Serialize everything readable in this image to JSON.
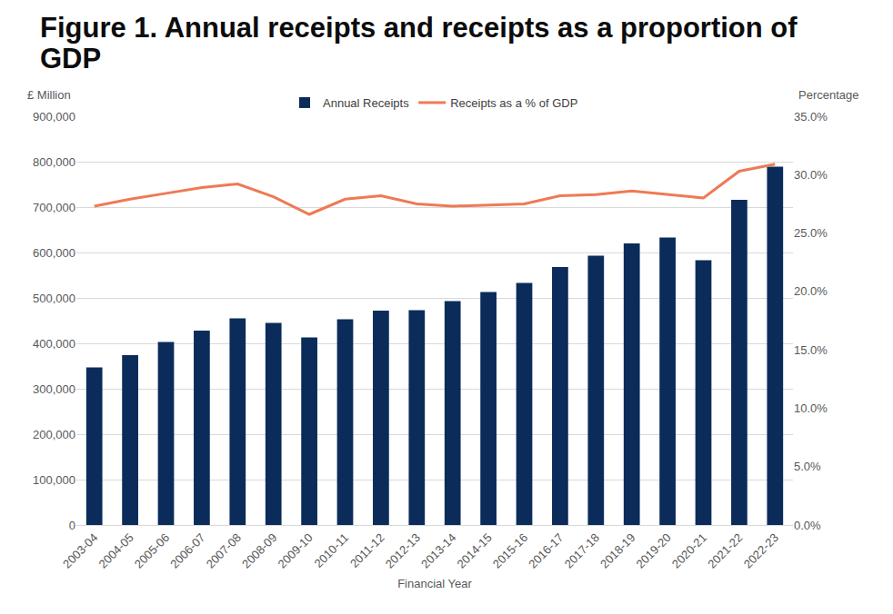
{
  "chart_data": {
    "type": "bar",
    "title": "Figure 1. Annual receipts and receipts as a proportion of GDP",
    "x_label": "Financial Year",
    "y_label": "£ Million",
    "y2_label": "Percentage",
    "categories": [
      "2003-04",
      "2004-05",
      "2005-06",
      "2006-07",
      "2007-08",
      "2008-09",
      "2009-10",
      "2010-11",
      "2011-12",
      "2012-13",
      "2013-14",
      "2014-15",
      "2015-16",
      "2016-17",
      "2017-18",
      "2018-19",
      "2019-20",
      "2020-21",
      "2021-22",
      "2022-23"
    ],
    "series": [
      {
        "name": "Annual Receipts",
        "type": "bar",
        "color": "#0b2c5a",
        "values": [
          347000,
          374000,
          403000,
          428000,
          455000,
          445000,
          413000,
          453000,
          472000,
          473000,
          493000,
          513000,
          533000,
          568000,
          593000,
          620000,
          633000,
          583000,
          716000,
          789000
        ]
      },
      {
        "name": "Receipts as a % of GDP",
        "type": "line",
        "color": "#ee7a55",
        "axis": "y2",
        "values": [
          27.3,
          27.9,
          28.4,
          28.9,
          29.2,
          28.1,
          26.6,
          27.9,
          28.2,
          27.5,
          27.3,
          27.4,
          27.5,
          28.2,
          28.3,
          28.6,
          28.3,
          28.0,
          30.3,
          30.9
        ]
      }
    ],
    "ylim": [
      0,
      900000
    ],
    "yticks": [
      0,
      {
        "value": 100000,
        "label": "100,000"
      },
      {
        "value": 200000,
        "label": "200,000"
      },
      {
        "value": 300000,
        "label": "300,000"
      },
      {
        "value": 400000,
        "label": "400,000"
      },
      {
        "value": 500000,
        "label": "500,000"
      },
      {
        "value": 600000,
        "label": "600,000"
      },
      {
        "value": 700000,
        "label": "700,000"
      },
      {
        "value": 800000,
        "label": "800,000"
      },
      {
        "value": 900000,
        "label": "900,000"
      }
    ],
    "y2lim": [
      0,
      35
    ],
    "y2ticks": [
      {
        "value": 0,
        "label": "0.0%"
      },
      {
        "value": 5,
        "label": "5.0%"
      },
      {
        "value": 10,
        "label": "10.0%"
      },
      {
        "value": 15,
        "label": "15.0%"
      },
      {
        "value": 20,
        "label": "20.0%"
      },
      {
        "value": 25,
        "label": "25.0%"
      },
      {
        "value": 30,
        "label": "30.0%"
      },
      {
        "value": 35,
        "label": "35.0%"
      }
    ],
    "grid": true,
    "legend": "top"
  }
}
